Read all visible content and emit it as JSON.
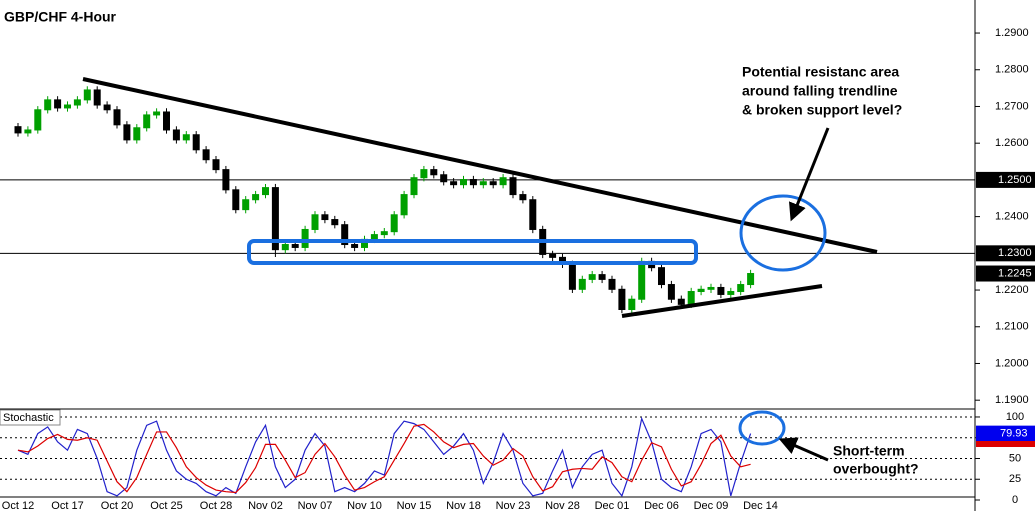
{
  "chart_data": [
    {
      "type": "candlestick",
      "title": "GBP/CHF 4-Hour",
      "categories": [
        "Oct 12",
        null,
        null,
        null,
        null,
        "Oct 17",
        null,
        null,
        null,
        null,
        "Oct 20",
        null,
        null,
        null,
        null,
        "Oct 25",
        null,
        null,
        null,
        null,
        "Oct 28",
        null,
        null,
        null,
        null,
        "Nov 02",
        null,
        null,
        null,
        null,
        "Nov 07",
        null,
        null,
        null,
        null,
        "Nov 10",
        null,
        null,
        null,
        null,
        "Nov 15",
        null,
        null,
        null,
        null,
        "Nov 18",
        null,
        null,
        null,
        null,
        "Nov 23",
        null,
        null,
        null,
        null,
        "Nov 28",
        null,
        null,
        null,
        null,
        "Dec 01",
        null,
        null,
        null,
        null,
        "Dec 06",
        null,
        null,
        null,
        null,
        "Dec 09",
        null,
        null,
        null,
        null,
        "Dec 14"
      ],
      "open": [
        1.2645,
        1.2628,
        1.2636,
        1.2691,
        1.2718,
        1.2696,
        1.2704,
        1.2718,
        1.2745,
        1.2704,
        1.2691,
        1.265,
        1.2609,
        1.2642,
        1.2677,
        1.2685,
        1.2636,
        1.2609,
        1.2623,
        1.2582,
        1.2555,
        1.2528,
        1.2473,
        1.2419,
        1.2446,
        1.246,
        1.2479,
        1.231,
        1.2324,
        1.2316,
        1.2365,
        1.2405,
        1.2392,
        1.2378,
        1.2324,
        1.2316,
        1.2338,
        1.2351,
        1.2359,
        1.2405,
        1.246,
        1.2506,
        1.2528,
        1.2514,
        1.2495,
        1.2487,
        1.2501,
        1.2487,
        1.2495,
        1.2487,
        1.2506,
        1.246,
        1.2446,
        1.2365,
        1.2297,
        1.2289,
        1.227,
        1.2202,
        1.2229,
        1.2242,
        1.2229,
        1.2202,
        1.2147,
        1.2175,
        1.2278,
        1.2261,
        1.2215,
        1.2175,
        1.2161,
        1.2196,
        1.2202,
        1.2207,
        1.2188,
        1.2196,
        1.2215,
        null
      ],
      "high": [
        1.2655,
        1.2646,
        1.2701,
        1.2728,
        1.2728,
        1.2714,
        1.2728,
        1.2755,
        1.2755,
        1.2714,
        1.2701,
        1.266,
        1.2652,
        1.2687,
        1.2695,
        1.2695,
        1.2646,
        1.2633,
        1.2633,
        1.2592,
        1.2565,
        1.2538,
        1.2483,
        1.2456,
        1.247,
        1.2489,
        1.2489,
        1.2334,
        1.2334,
        1.2375,
        1.2415,
        1.2415,
        1.2402,
        1.2388,
        1.2334,
        1.2348,
        1.2361,
        1.2369,
        1.2415,
        1.247,
        1.2516,
        1.2538,
        1.2538,
        1.2524,
        1.2505,
        1.2511,
        1.2511,
        1.2505,
        1.2505,
        1.2516,
        1.2516,
        1.247,
        1.2456,
        1.2375,
        1.2307,
        1.2299,
        1.228,
        1.2239,
        1.2252,
        1.2252,
        1.2239,
        1.2212,
        1.2185,
        1.2288,
        1.2288,
        1.2271,
        1.2225,
        1.2185,
        1.2206,
        1.2212,
        1.2217,
        1.2217,
        1.2206,
        1.2225,
        1.2255,
        null
      ],
      "low": [
        1.2618,
        1.2618,
        1.2626,
        1.2681,
        1.2686,
        1.2686,
        1.2694,
        1.2708,
        1.2694,
        1.2681,
        1.264,
        1.2599,
        1.2599,
        1.2632,
        1.2667,
        1.2626,
        1.2599,
        1.2599,
        1.2572,
        1.2545,
        1.2518,
        1.2463,
        1.2409,
        1.2409,
        1.2436,
        1.245,
        1.229,
        1.23,
        1.2306,
        1.2306,
        1.2355,
        1.2382,
        1.2368,
        1.2314,
        1.2306,
        1.2306,
        1.2328,
        1.2341,
        1.2349,
        1.2395,
        1.245,
        1.2496,
        1.2504,
        1.2485,
        1.2477,
        1.2477,
        1.2477,
        1.2477,
        1.2477,
        1.2477,
        1.245,
        1.2436,
        1.2355,
        1.2287,
        1.2279,
        1.226,
        1.2192,
        1.2192,
        1.2219,
        1.2219,
        1.2192,
        1.2137,
        1.2137,
        1.2165,
        1.2251,
        1.2205,
        1.2165,
        1.2151,
        1.2151,
        1.2186,
        1.2192,
        1.2178,
        1.2178,
        1.2186,
        1.2205,
        null
      ],
      "close": [
        1.2628,
        1.2636,
        1.2691,
        1.2718,
        1.2696,
        1.2704,
        1.2718,
        1.2745,
        1.2704,
        1.2691,
        1.265,
        1.2609,
        1.2642,
        1.2677,
        1.2685,
        1.2636,
        1.2609,
        1.2623,
        1.2582,
        1.2555,
        1.2528,
        1.2473,
        1.2419,
        1.2446,
        1.246,
        1.2479,
        1.231,
        1.2324,
        1.2316,
        1.2365,
        1.2405,
        1.2392,
        1.2378,
        1.2324,
        1.2316,
        1.2338,
        1.2351,
        1.2359,
        1.2405,
        1.246,
        1.2506,
        1.2528,
        1.2514,
        1.2495,
        1.2487,
        1.2501,
        1.2487,
        1.2495,
        1.2487,
        1.2506,
        1.246,
        1.2446,
        1.2365,
        1.2297,
        1.2289,
        1.227,
        1.2202,
        1.2229,
        1.2242,
        1.2229,
        1.2202,
        1.2147,
        1.2175,
        1.2278,
        1.2261,
        1.2215,
        1.2175,
        1.2161,
        1.2196,
        1.2202,
        1.2207,
        1.2188,
        1.2196,
        1.2215,
        1.2245,
        null
      ],
      "up_color": "#00a000",
      "down_color": "#000000",
      "ylim": [
        1.1876,
        1.299
      ],
      "yticks": [
        {
          "value": 1.29,
          "label": "1.2900"
        },
        {
          "value": 1.28,
          "label": "1.2800"
        },
        {
          "value": 1.27,
          "label": "1.2700"
        },
        {
          "value": 1.26,
          "label": "1.2600"
        },
        {
          "value": 1.24,
          "label": "1.2400"
        },
        {
          "value": 1.22,
          "label": "1.2200"
        },
        {
          "value": 1.21,
          "label": "1.2100"
        },
        {
          "value": 1.2,
          "label": "1.2000"
        },
        {
          "value": 1.19,
          "label": "1.1900"
        }
      ],
      "hlines": [
        {
          "value": 1.25,
          "label": "1.2500"
        },
        {
          "value": 1.23,
          "label": "1.2300"
        }
      ],
      "last_price": {
        "value": 1.2245,
        "label": "1.2245"
      },
      "annotations": [
        "Potential resistanc area",
        "around falling trendline",
        "& broken support level?"
      ]
    },
    {
      "type": "line",
      "title": "Stochastic",
      "series": [
        {
          "color": "#2222cc",
          "values": [
            60,
            55,
            80,
            88,
            70,
            60,
            85,
            80,
            50,
            10,
            5,
            15,
            60,
            90,
            95,
            60,
            35,
            25,
            20,
            10,
            5,
            15,
            8,
            40,
            70,
            90,
            40,
            15,
            25,
            60,
            80,
            65,
            10,
            15,
            10,
            20,
            35,
            30,
            80,
            95,
            92,
            85,
            70,
            55,
            65,
            80,
            60,
            20,
            45,
            80,
            60,
            20,
            5,
            8,
            35,
            60,
            15,
            40,
            55,
            60,
            20,
            5,
            40,
            98,
            70,
            25,
            15,
            10,
            40,
            80,
            85,
            70,
            5,
            45,
            80,
            null
          ]
        },
        {
          "color": "#dd0000",
          "values": [
            60,
            58,
            65,
            74,
            79,
            73,
            72,
            75,
            72,
            47,
            22,
            10,
            27,
            55,
            82,
            82,
            63,
            40,
            27,
            18,
            12,
            10,
            9,
            21,
            39,
            67,
            67,
            48,
            27,
            33,
            55,
            68,
            52,
            30,
            12,
            15,
            22,
            28,
            48,
            68,
            89,
            91,
            82,
            70,
            63,
            67,
            68,
            53,
            42,
            48,
            62,
            53,
            28,
            11,
            16,
            34,
            37,
            38,
            37,
            52,
            45,
            28,
            22,
            48,
            69,
            64,
            37,
            17,
            22,
            43,
            68,
            78,
            53,
            40,
            43,
            null
          ]
        }
      ],
      "ylim": [
        0,
        108.4
      ],
      "yticks": [
        100,
        75,
        50,
        25,
        0
      ],
      "last_value": {
        "value": 79.93,
        "label": "79.93"
      },
      "annotations": [
        "Short-term",
        "overbought?"
      ]
    }
  ]
}
